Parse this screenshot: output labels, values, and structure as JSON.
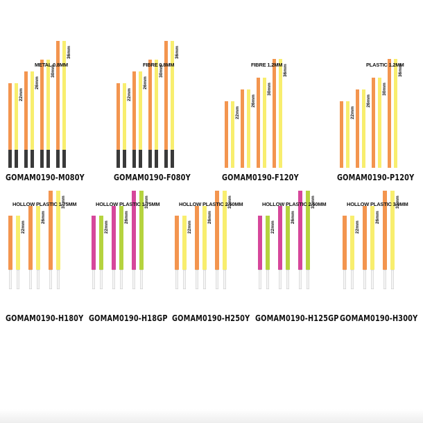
{
  "colors": {
    "orange": "#f3954f",
    "yellow": "#f8ee6e",
    "magenta": "#d6479b",
    "green": "#b5d33f",
    "black": "#3a3a3a",
    "white_tip": "#f4f4f4",
    "tip_outline": "#cfcfcf"
  },
  "panels": [
    {
      "title": "METAL 0.8MM",
      "code": "GOMAM0190-M080Y",
      "tip": "black",
      "sticks": [
        {
          "color": "orange",
          "length_mm": 22
        },
        {
          "color": "yellow",
          "length_mm": 22,
          "label": "22mm"
        },
        {
          "color": "orange",
          "length_mm": 26
        },
        {
          "color": "yellow",
          "length_mm": 26,
          "label": "26mm"
        },
        {
          "color": "orange",
          "length_mm": 30
        },
        {
          "color": "yellow",
          "length_mm": 30,
          "label": "30mm"
        },
        {
          "color": "orange",
          "length_mm": 36
        },
        {
          "color": "yellow",
          "length_mm": 36,
          "label": "36mm"
        }
      ]
    },
    {
      "title": "FIBRE 0.8MM",
      "code": "GOMAM0190-F080Y",
      "tip": "black",
      "sticks": [
        {
          "color": "orange",
          "length_mm": 22
        },
        {
          "color": "yellow",
          "length_mm": 22,
          "label": "22mm"
        },
        {
          "color": "orange",
          "length_mm": 26
        },
        {
          "color": "yellow",
          "length_mm": 26,
          "label": "26mm"
        },
        {
          "color": "orange",
          "length_mm": 30
        },
        {
          "color": "yellow",
          "length_mm": 30,
          "label": "30mm"
        },
        {
          "color": "orange",
          "length_mm": 36
        },
        {
          "color": "yellow",
          "length_mm": 36,
          "label": "36mm"
        }
      ]
    },
    {
      "title": "FIBRE 1.2MM",
      "code": "GOMAM0190-F120Y",
      "tip": "none",
      "sticks": [
        {
          "color": "orange",
          "length_mm": 22
        },
        {
          "color": "yellow",
          "length_mm": 22,
          "label": "22mm"
        },
        {
          "color": "orange",
          "length_mm": 26
        },
        {
          "color": "yellow",
          "length_mm": 26,
          "label": "26mm"
        },
        {
          "color": "orange",
          "length_mm": 30
        },
        {
          "color": "yellow",
          "length_mm": 30,
          "label": "30mm"
        },
        {
          "color": "orange",
          "length_mm": 36
        },
        {
          "color": "yellow",
          "length_mm": 36,
          "label": "36mm"
        }
      ]
    },
    {
      "title": "PLASTIC 1.2MM",
      "code": "GOMAM0190-P120Y",
      "tip": "none",
      "sticks": [
        {
          "color": "orange",
          "length_mm": 22
        },
        {
          "color": "yellow",
          "length_mm": 22,
          "label": "22mm"
        },
        {
          "color": "orange",
          "length_mm": 26
        },
        {
          "color": "yellow",
          "length_mm": 26,
          "label": "26mm"
        },
        {
          "color": "orange",
          "length_mm": 30
        },
        {
          "color": "yellow",
          "length_mm": 30,
          "label": "30mm"
        },
        {
          "color": "orange",
          "length_mm": 36
        },
        {
          "color": "yellow",
          "length_mm": 36,
          "label": "36mm"
        }
      ]
    },
    {
      "title": "HOLLOW PLASTIC 1.75MM",
      "code": "GOMAM0190-H180Y",
      "tip": "white",
      "sticks": [
        {
          "color": "orange",
          "length_mm": 22
        },
        {
          "color": "yellow",
          "length_mm": 22,
          "label": "22mm"
        },
        {
          "color": "orange",
          "length_mm": 26
        },
        {
          "color": "yellow",
          "length_mm": 26,
          "label": "26mm"
        },
        {
          "color": "orange",
          "length_mm": 32
        },
        {
          "color": "yellow",
          "length_mm": 32,
          "label": "32mm"
        }
      ]
    },
    {
      "title": "HOLLOW PLASTIC 1.75MM",
      "code": "GOMAM0190-H18GP",
      "tip": "white",
      "sticks": [
        {
          "color": "magenta",
          "length_mm": 22
        },
        {
          "color": "green",
          "length_mm": 22,
          "label": "22mm"
        },
        {
          "color": "magenta",
          "length_mm": 26
        },
        {
          "color": "green",
          "length_mm": 26,
          "label": "26mm"
        },
        {
          "color": "magenta",
          "length_mm": 32
        },
        {
          "color": "green",
          "length_mm": 32,
          "label": "32mm"
        }
      ]
    },
    {
      "title": "HOLLOW PLASTIC 2.50MM",
      "code": "GOMAM0190-H250Y",
      "tip": "white",
      "sticks": [
        {
          "color": "orange",
          "length_mm": 22
        },
        {
          "color": "yellow",
          "length_mm": 22,
          "label": "22mm"
        },
        {
          "color": "orange",
          "length_mm": 26
        },
        {
          "color": "yellow",
          "length_mm": 26,
          "label": "26mm"
        },
        {
          "color": "orange",
          "length_mm": 32
        },
        {
          "color": "yellow",
          "length_mm": 32,
          "label": "32mm"
        }
      ]
    },
    {
      "title": "HOLLOW PLASTIC 2.50MM",
      "code": "GOMAM0190-H125GP",
      "tip": "white",
      "sticks": [
        {
          "color": "magenta",
          "length_mm": 22
        },
        {
          "color": "green",
          "length_mm": 22,
          "label": "22mm"
        },
        {
          "color": "magenta",
          "length_mm": 26
        },
        {
          "color": "green",
          "length_mm": 26,
          "label": "26mm"
        },
        {
          "color": "magenta",
          "length_mm": 32
        },
        {
          "color": "green",
          "length_mm": 32,
          "label": "32mm"
        }
      ]
    },
    {
      "title": "HOLLOW PLASTIC 3.0MM",
      "code": "GOMAM0190-H300Y",
      "tip": "white",
      "sticks": [
        {
          "color": "orange",
          "length_mm": 22
        },
        {
          "color": "yellow",
          "length_mm": 22,
          "label": "22mm"
        },
        {
          "color": "orange",
          "length_mm": 26
        },
        {
          "color": "yellow",
          "length_mm": 26,
          "label": "26mm"
        },
        {
          "color": "orange",
          "length_mm": 32
        },
        {
          "color": "yellow",
          "length_mm": 32,
          "label": "32mm"
        }
      ]
    }
  ]
}
